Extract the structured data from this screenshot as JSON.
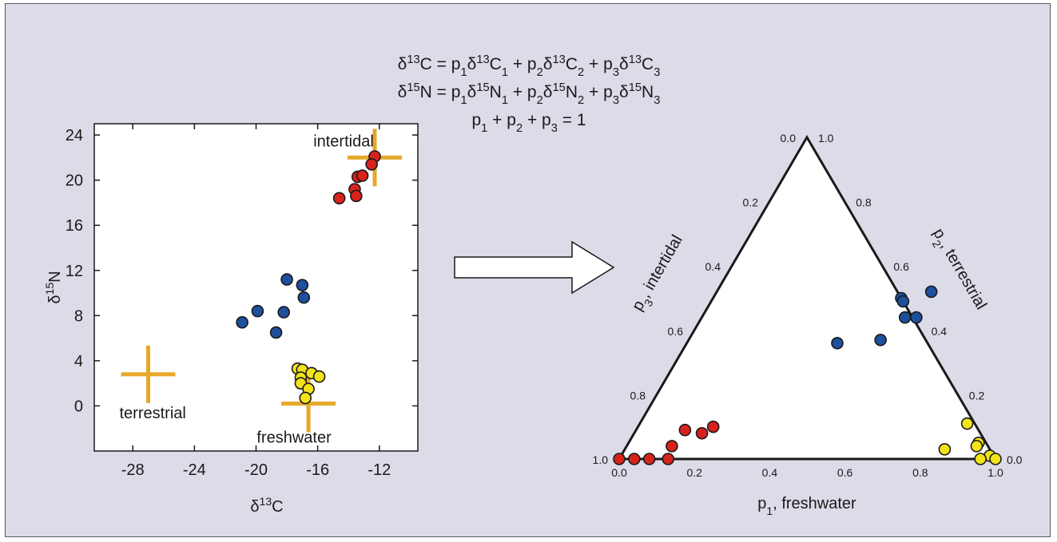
{
  "equations": {
    "line1": {
      "parts": [
        [
          "δ",
          ""
        ],
        [
          "13",
          "sup"
        ],
        [
          "C = p",
          ""
        ],
        [
          "1",
          "sub"
        ],
        [
          "δ",
          ""
        ],
        [
          "13",
          "sup"
        ],
        [
          "C",
          ""
        ],
        [
          "1",
          "sub"
        ],
        [
          " + p",
          ""
        ],
        [
          "2",
          "sub"
        ],
        [
          "δ",
          ""
        ],
        [
          "13",
          "sup"
        ],
        [
          "C",
          ""
        ],
        [
          "2",
          "sub"
        ],
        [
          " + p",
          ""
        ],
        [
          "3",
          "sub"
        ],
        [
          "δ",
          ""
        ],
        [
          "13",
          "sup"
        ],
        [
          "C",
          ""
        ],
        [
          "3",
          "sub"
        ]
      ]
    },
    "line2": {
      "parts": [
        [
          "δ",
          ""
        ],
        [
          "15",
          "sup"
        ],
        [
          "N = p",
          ""
        ],
        [
          "1",
          "sub"
        ],
        [
          "δ",
          ""
        ],
        [
          "15",
          "sup"
        ],
        [
          "N",
          ""
        ],
        [
          "1",
          "sub"
        ],
        [
          " + p",
          ""
        ],
        [
          "2",
          "sub"
        ],
        [
          "δ",
          ""
        ],
        [
          "15",
          "sup"
        ],
        [
          "N",
          ""
        ],
        [
          "2",
          "sub"
        ],
        [
          " + p",
          ""
        ],
        [
          "3",
          "sub"
        ],
        [
          "δ",
          ""
        ],
        [
          "15",
          "sup"
        ],
        [
          "N",
          ""
        ],
        [
          "3",
          "sub"
        ]
      ]
    },
    "line3": {
      "parts": [
        [
          "p",
          ""
        ],
        [
          "1",
          "sub"
        ],
        [
          " + p",
          ""
        ],
        [
          "2",
          "sub"
        ],
        [
          " + p",
          ""
        ],
        [
          "3",
          "sub"
        ],
        [
          " = 1",
          ""
        ]
      ]
    }
  },
  "colors": {
    "marine": "#d8231c",
    "mid": "#1d4f9c",
    "fresh": "#f2e31a",
    "source_cross": "#e6a82a",
    "axis": "#1a1a1a"
  },
  "chart_data": [
    {
      "type": "scatter",
      "title": "",
      "xlabel": {
        "parts": [
          [
            "δ",
            ""
          ],
          [
            "13",
            "sup"
          ],
          [
            "C",
            ""
          ]
        ]
      },
      "ylabel": {
        "parts": [
          [
            "δ",
            ""
          ],
          [
            "15",
            "sup"
          ],
          [
            "N",
            ""
          ]
        ]
      },
      "xlim": [
        -30.5,
        -9.5
      ],
      "ylim": [
        -4,
        25
      ],
      "xticks": [
        "-28",
        "-24",
        "-20",
        "-16",
        "-12"
      ],
      "xtick_values": [
        -28,
        -24,
        -20,
        -16,
        -12
      ],
      "yticks": [
        "24",
        "20",
        "16",
        "12",
        "8",
        "4",
        "0"
      ],
      "ytick_values": [
        24,
        20,
        16,
        12,
        8,
        4,
        0
      ],
      "sources": [
        {
          "label": "intertidal",
          "x": -12.3,
          "y": 22
        },
        {
          "label": "terrestrial",
          "x": -27,
          "y": 2.8
        },
        {
          "label": "freshwater",
          "x": -16.6,
          "y": 0.2
        }
      ],
      "series": [
        {
          "color_key": "marine",
          "points": [
            [
              -12.3,
              22.1
            ],
            [
              -12.5,
              21.4
            ],
            [
              -13.4,
              20.3
            ],
            [
              -13.1,
              20.4
            ],
            [
              -13.6,
              19.2
            ],
            [
              -13.5,
              18.6
            ],
            [
              -14.6,
              18.4
            ]
          ]
        },
        {
          "color_key": "mid",
          "points": [
            [
              -18.0,
              11.2
            ],
            [
              -17.0,
              10.7
            ],
            [
              -16.9,
              9.6
            ],
            [
              -19.9,
              8.4
            ],
            [
              -18.2,
              8.3
            ],
            [
              -20.9,
              7.4
            ],
            [
              -18.7,
              6.5
            ]
          ]
        },
        {
          "color_key": "fresh",
          "points": [
            [
              -17.3,
              3.3
            ],
            [
              -17.0,
              3.2
            ],
            [
              -16.4,
              2.9
            ],
            [
              -17.1,
              2.5
            ],
            [
              -15.9,
              2.6
            ],
            [
              -17.1,
              2.0
            ],
            [
              -16.6,
              1.5
            ],
            [
              -16.8,
              0.7
            ]
          ]
        }
      ]
    },
    {
      "type": "scatter",
      "title": "",
      "ternary": true,
      "axes": {
        "bottom": {
          "label": "p",
          "sub": "1",
          "suffix": ", freshwater",
          "ticks": [
            "0.0",
            "0.2",
            "0.4",
            "0.6",
            "0.8",
            "1.0"
          ]
        },
        "right": {
          "label": "p",
          "sub": "2",
          "suffix": ", terrestrial",
          "ticks": [
            "0.0",
            "0.2",
            "0.4",
            "0.6",
            "0.8",
            "1.0"
          ]
        },
        "left": {
          "label": "p",
          "sub": "3",
          "suffix": ", intertidal",
          "ticks": [
            "0.0",
            "0.2",
            "0.4",
            "0.6",
            "0.8",
            "1.0"
          ]
        }
      },
      "series": [
        {
          "color_key": "marine",
          "points": [
            [
              0.0,
              0.0
            ],
            [
              0.04,
              0.0
            ],
            [
              0.08,
              0.0
            ],
            [
              0.13,
              0.0
            ],
            [
              0.12,
              0.04
            ],
            [
              0.18,
              0.08
            ],
            [
              0.13,
              0.09
            ],
            [
              0.2,
              0.1
            ]
          ]
        },
        {
          "color_key": "mid",
          "points": [
            [
              0.4,
              0.36
            ],
            [
              0.5,
              0.5
            ],
            [
              0.51,
              0.49
            ],
            [
              0.54,
              0.44
            ],
            [
              0.51,
              0.37
            ],
            [
              0.57,
              0.52
            ],
            [
              0.57,
              0.44
            ]
          ]
        },
        {
          "color_key": "fresh",
          "points": [
            [
              0.87,
              0.11
            ],
            [
              0.93,
              0.05
            ],
            [
              0.93,
              0.04
            ],
            [
              0.85,
              0.03
            ],
            [
              0.98,
              0.01
            ],
            [
              1.0,
              0.0
            ],
            [
              0.96,
              0.0
            ]
          ]
        }
      ]
    }
  ]
}
